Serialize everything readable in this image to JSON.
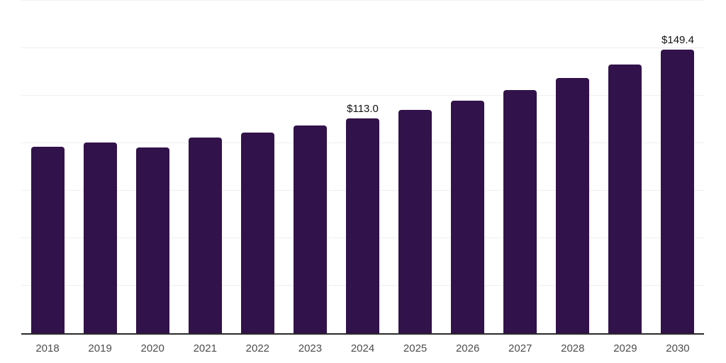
{
  "chart_data": {
    "type": "bar",
    "title": "",
    "xlabel": "",
    "ylabel": "",
    "categories": [
      "2018",
      "2019",
      "2020",
      "2021",
      "2022",
      "2023",
      "2024",
      "2025",
      "2026",
      "2027",
      "2028",
      "2029",
      "2030"
    ],
    "values": [
      98.1,
      100.5,
      97.7,
      102.9,
      105.7,
      109.4,
      113.0,
      117.5,
      122.4,
      127.9,
      134.4,
      141.5,
      149.4
    ],
    "annotations": [
      {
        "category": "2024",
        "text": "$113.0"
      },
      {
        "category": "2030",
        "text": "$149.4"
      }
    ],
    "ylim": [
      0,
      175
    ],
    "grid_step": 25,
    "grid": true,
    "legend": "none",
    "y_axis_labels": false,
    "colors": {
      "bar": "#32124A",
      "gridline": "#EFEFEF",
      "axis_line": "#2B2B2B",
      "tick_label": "#4D4D4D",
      "data_label": "#111111",
      "background": "#FFFFFF"
    }
  }
}
